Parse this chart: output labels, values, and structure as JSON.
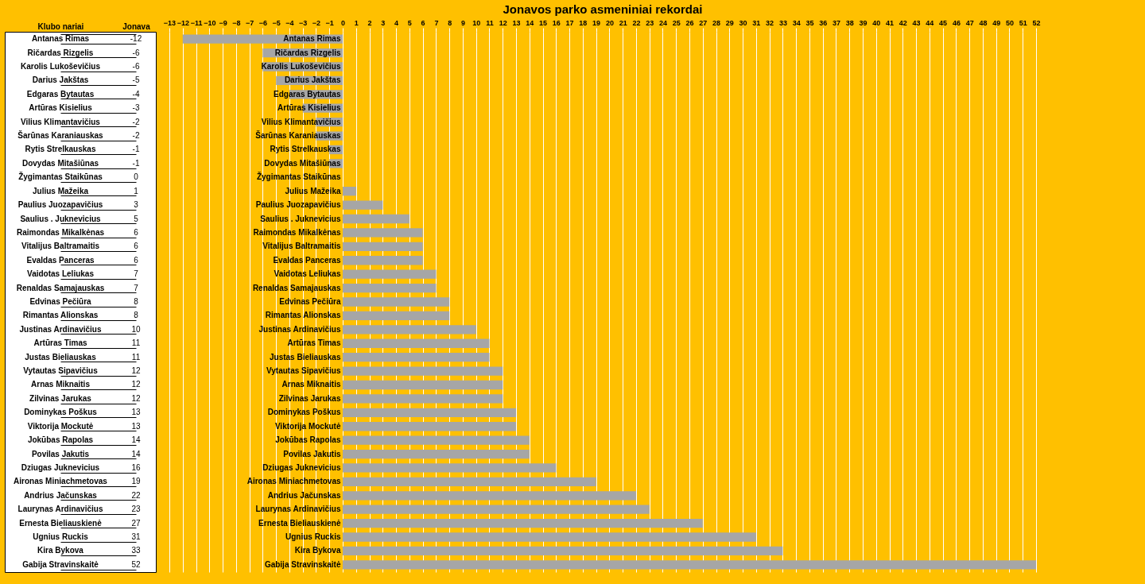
{
  "chart_data": {
    "type": "bar",
    "orientation": "horizontal",
    "title": "Jonavos parko asmeniniai rekordai",
    "annotations": [
      "Klubo nariai",
      "Jonava"
    ],
    "categories": [
      "Antanas Rimas",
      "Ričardas Rizgelis",
      "Karolis Lukoševičius",
      "Darius Jakštas",
      "Edgaras Bytautas",
      "Artūras Kisielius",
      "Vilius Klimantavičius",
      "Šarūnas Karaniauskas",
      "Rytis Strelkauskas",
      "Dovydas Mitašiūnas",
      "Žygimantas Staikūnas",
      "Julius Mažeika",
      "Paulius Juozapavičius",
      "Saulius . Juknevicius",
      "Raimondas Mikalkėnas",
      "Vitalijus Baltramaitis",
      "Evaldas Panceras",
      "Vaidotas Leliukas",
      "Renaldas Samajauskas",
      "Edvinas Pečiūra",
      "Rimantas Alionskas",
      "Justinas Ardinavičius",
      "Artūras Timas",
      "Justas Bieliauskas",
      "Vytautas Sipavičius",
      "Arnas Miknaitis",
      "Zilvinas Jarukas",
      "Dominykas Poškus",
      "Viktorija Mockutė",
      "Jokūbas Rapolas",
      "Povilas Jakutis",
      "Dziugas Juknevicius",
      "Aironas Miniachmetovas",
      "Andrius Jačunskas",
      "Laurynas Ardinavičius",
      "Ernesta Bieliauskienė",
      "Ugnius Ruckis",
      "Kira Bykova",
      "Gabija Stravinskaitė"
    ],
    "series": [
      {
        "color": "#a6a6a6",
        "values": [
          -12,
          -6,
          -6,
          -5,
          -4,
          -3,
          -2,
          -2,
          -1,
          -1,
          0,
          1,
          3,
          5,
          6,
          6,
          6,
          7,
          7,
          8,
          8,
          10,
          11,
          11,
          12,
          12,
          12,
          13,
          13,
          14,
          14,
          16,
          19,
          22,
          23,
          27,
          31,
          33,
          52
        ]
      }
    ],
    "data_labels": true,
    "xlim": [
      -13,
      52
    ],
    "xticks": [
      -13,
      -12,
      -11,
      -10,
      -9,
      -8,
      -7,
      -6,
      -5,
      -4,
      -3,
      -2,
      -1,
      0,
      1,
      2,
      3,
      4,
      5,
      6,
      7,
      8,
      9,
      10,
      11,
      12,
      13,
      14,
      15,
      16,
      17,
      18,
      19,
      20,
      21,
      22,
      23,
      24,
      25,
      26,
      27,
      28,
      29,
      30,
      31,
      32,
      33,
      34,
      35,
      36,
      37,
      38,
      39,
      40,
      41,
      42,
      43,
      44,
      45,
      46,
      47,
      48,
      49,
      50,
      51,
      52
    ],
    "grid": "x"
  }
}
